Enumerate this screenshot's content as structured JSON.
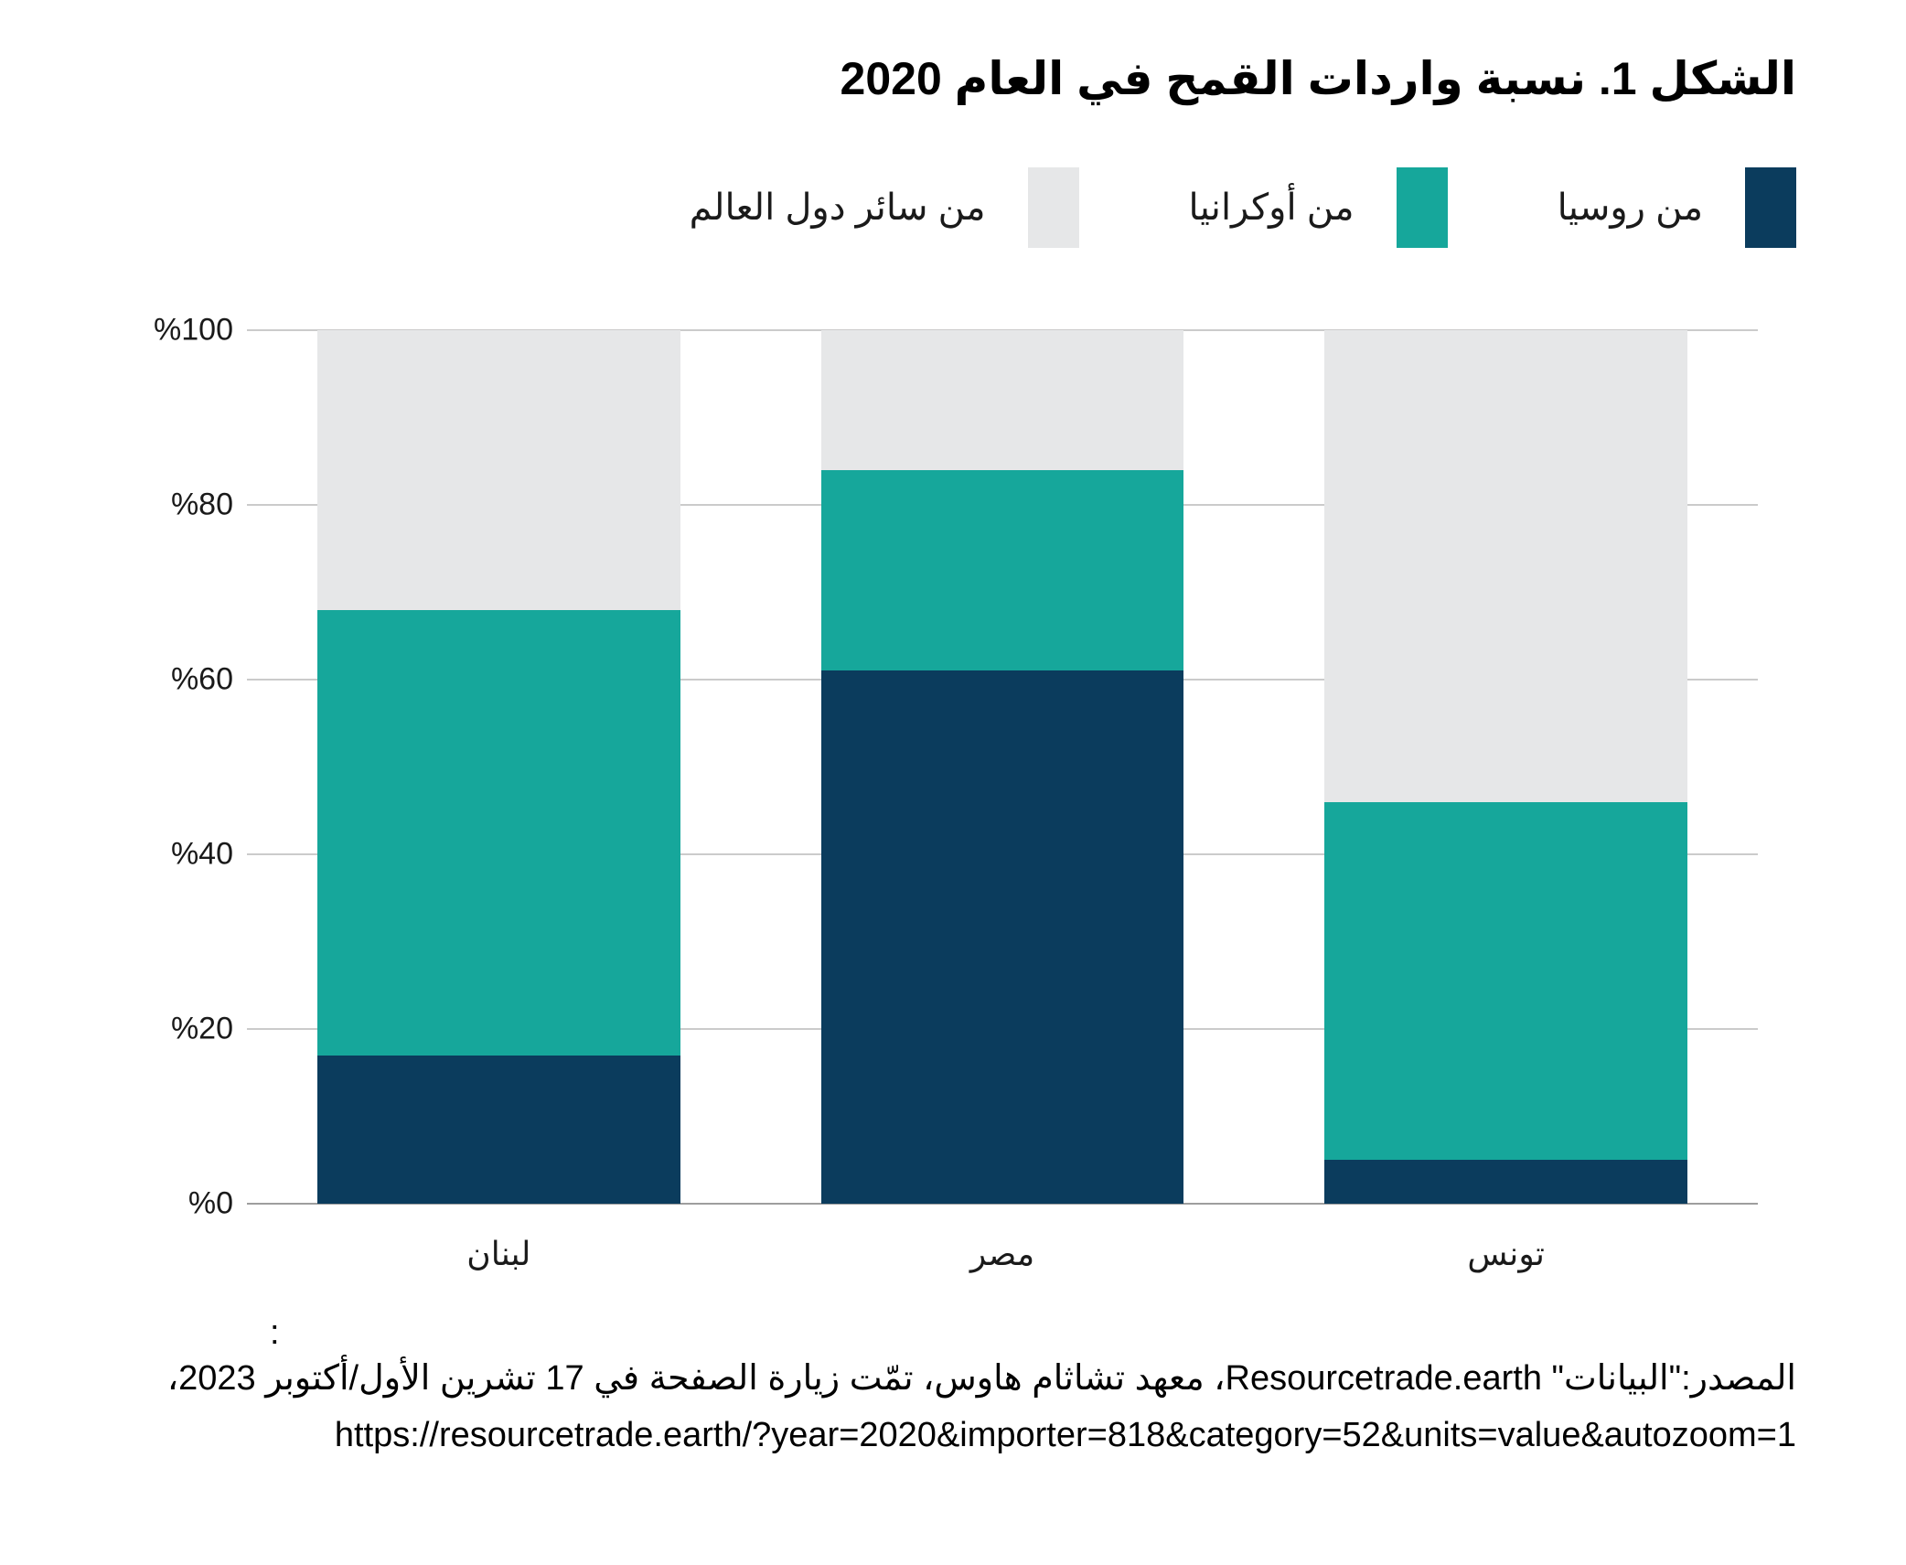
{
  "title": "الشكل 1. نسبة واردات القمح في العام 2020",
  "chart_data": {
    "type": "bar",
    "stacked": true,
    "title": "الشكل 1. نسبة واردات القمح في العام 2020",
    "categories": [
      "لبنان",
      "مصر",
      "تونس"
    ],
    "series": [
      {
        "name": "من روسيا",
        "color": "#0b3c5d",
        "values": [
          17,
          61,
          5
        ]
      },
      {
        "name": "من أوكرانيا",
        "color": "#16a79b",
        "values": [
          51,
          23,
          41
        ]
      },
      {
        "name": "من سائر دول العالم",
        "color": "#e6e7e8",
        "values": [
          32,
          16,
          54
        ]
      }
    ],
    "units": "percent",
    "ylim": [
      0,
      100
    ],
    "yticks": [
      0,
      20,
      40,
      60,
      80,
      100
    ],
    "ytick_labels": [
      "%0",
      "%20",
      "%40",
      "%60",
      "%80",
      "%100"
    ],
    "grid": true,
    "legend_position": "top-right"
  },
  "footer": {
    "stray_colon": ":",
    "source_line": "المصدر:\"البيانات\" Resourcetrade.earth، معهد تشاثام هاوس، تمّت زيارة الصفحة في 17 تشرين الأول/أكتوبر 2023،",
    "url_line": "https://resourcetrade.earth/?year=2020&importer=818&category=52&units=value&autozoom=1"
  },
  "colors": {
    "russia_navy": "#0b3c5d",
    "ukraine_teal": "#16a79b",
    "world_gray": "#e6e7e8",
    "gridline": "#cbcbcb",
    "axis_line": "#9e9e9e",
    "text": "#1a1a1a"
  }
}
